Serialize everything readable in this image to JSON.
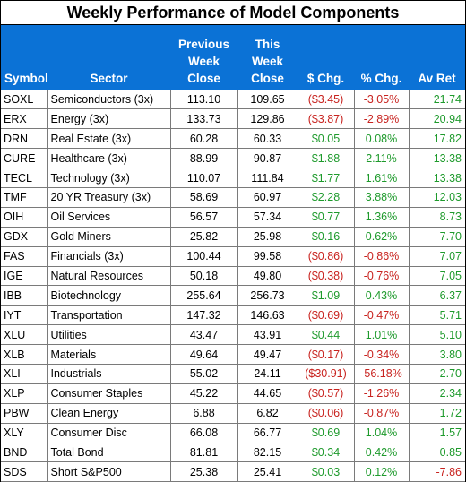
{
  "title": "Weekly Performance of Model Components",
  "headers": {
    "symbol": "Symbol",
    "sector": "Sector",
    "prev_close": [
      "Previous",
      "Week",
      "Close"
    ],
    "this_close": [
      "This",
      "Week",
      "Close"
    ],
    "dollar_chg": "$ Chg.",
    "pct_chg": "% Chg.",
    "av_ret": "Av Ret"
  },
  "colors": {
    "header_bg": "#0b72d6",
    "positive": "#1e9a2c",
    "negative": "#c8231f"
  },
  "rows": [
    {
      "symbol": "SOXL",
      "sector": "Semiconductors (3x)",
      "prev": "113.10",
      "curr": "109.65",
      "dchg": "($3.45)",
      "pchg": "-3.05%",
      "ret": "21.74",
      "chg_sign": "neg",
      "ret_sign": "pos"
    },
    {
      "symbol": "ERX",
      "sector": "Energy (3x)",
      "prev": "133.73",
      "curr": "129.86",
      "dchg": "($3.87)",
      "pchg": "-2.89%",
      "ret": "20.94",
      "chg_sign": "neg",
      "ret_sign": "pos"
    },
    {
      "symbol": "DRN",
      "sector": "Real Estate (3x)",
      "prev": "60.28",
      "curr": "60.33",
      "dchg": "$0.05",
      "pchg": "0.08%",
      "ret": "17.82",
      "chg_sign": "pos",
      "ret_sign": "pos"
    },
    {
      "symbol": "CURE",
      "sector": "Healthcare (3x)",
      "prev": "88.99",
      "curr": "90.87",
      "dchg": "$1.88",
      "pchg": "2.11%",
      "ret": "13.38",
      "chg_sign": "pos",
      "ret_sign": "pos"
    },
    {
      "symbol": "TECL",
      "sector": "Technology (3x)",
      "prev": "110.07",
      "curr": "111.84",
      "dchg": "$1.77",
      "pchg": "1.61%",
      "ret": "13.38",
      "chg_sign": "pos",
      "ret_sign": "pos"
    },
    {
      "symbol": "TMF",
      "sector": "20 YR Treasury (3x)",
      "prev": "58.69",
      "curr": "60.97",
      "dchg": "$2.28",
      "pchg": "3.88%",
      "ret": "12.03",
      "chg_sign": "pos",
      "ret_sign": "pos"
    },
    {
      "symbol": "OIH",
      "sector": "Oil Services",
      "prev": "56.57",
      "curr": "57.34",
      "dchg": "$0.77",
      "pchg": "1.36%",
      "ret": "8.73",
      "chg_sign": "pos",
      "ret_sign": "pos"
    },
    {
      "symbol": "GDX",
      "sector": "Gold Miners",
      "prev": "25.82",
      "curr": "25.98",
      "dchg": "$0.16",
      "pchg": "0.62%",
      "ret": "7.70",
      "chg_sign": "pos",
      "ret_sign": "pos"
    },
    {
      "symbol": "FAS",
      "sector": "Financials (3x)",
      "prev": "100.44",
      "curr": "99.58",
      "dchg": "($0.86)",
      "pchg": "-0.86%",
      "ret": "7.07",
      "chg_sign": "neg",
      "ret_sign": "pos"
    },
    {
      "symbol": "IGE",
      "sector": "Natural Resources",
      "prev": "50.18",
      "curr": "49.80",
      "dchg": "($0.38)",
      "pchg": "-0.76%",
      "ret": "7.05",
      "chg_sign": "neg",
      "ret_sign": "pos"
    },
    {
      "symbol": "IBB",
      "sector": "Biotechnology",
      "prev": "255.64",
      "curr": "256.73",
      "dchg": "$1.09",
      "pchg": "0.43%",
      "ret": "6.37",
      "chg_sign": "pos",
      "ret_sign": "pos"
    },
    {
      "symbol": "IYT",
      "sector": "Transportation",
      "prev": "147.32",
      "curr": "146.63",
      "dchg": "($0.69)",
      "pchg": "-0.47%",
      "ret": "5.71",
      "chg_sign": "neg",
      "ret_sign": "pos"
    },
    {
      "symbol": "XLU",
      "sector": "Utilities",
      "prev": "43.47",
      "curr": "43.91",
      "dchg": "$0.44",
      "pchg": "1.01%",
      "ret": "5.10",
      "chg_sign": "pos",
      "ret_sign": "pos"
    },
    {
      "symbol": "XLB",
      "sector": "Materials",
      "prev": "49.64",
      "curr": "49.47",
      "dchg": "($0.17)",
      "pchg": "-0.34%",
      "ret": "3.80",
      "chg_sign": "neg",
      "ret_sign": "pos"
    },
    {
      "symbol": "XLI",
      "sector": "Industrials",
      "prev": "55.02",
      "curr": "24.11",
      "dchg": "($30.91)",
      "pchg": "-56.18%",
      "ret": "2.70",
      "chg_sign": "neg",
      "ret_sign": "pos"
    },
    {
      "symbol": "XLP",
      "sector": "Consumer Staples",
      "prev": "45.22",
      "curr": "44.65",
      "dchg": "($0.57)",
      "pchg": "-1.26%",
      "ret": "2.34",
      "chg_sign": "neg",
      "ret_sign": "pos"
    },
    {
      "symbol": "PBW",
      "sector": "Clean Energy",
      "prev": "6.88",
      "curr": "6.82",
      "dchg": "($0.06)",
      "pchg": "-0.87%",
      "ret": "1.72",
      "chg_sign": "neg",
      "ret_sign": "pos"
    },
    {
      "symbol": "XLY",
      "sector": "Consumer Disc",
      "prev": "66.08",
      "curr": "66.77",
      "dchg": "$0.69",
      "pchg": "1.04%",
      "ret": "1.57",
      "chg_sign": "pos",
      "ret_sign": "pos"
    },
    {
      "symbol": "BND",
      "sector": "Total Bond",
      "prev": "81.81",
      "curr": "82.15",
      "dchg": "$0.34",
      "pchg": "0.42%",
      "ret": "0.85",
      "chg_sign": "pos",
      "ret_sign": "pos"
    },
    {
      "symbol": "SDS",
      "sector": "Short S&P500",
      "prev": "25.38",
      "curr": "25.41",
      "dchg": "$0.03",
      "pchg": "0.12%",
      "ret": "-7.86",
      "chg_sign": "pos",
      "ret_sign": "neg"
    }
  ]
}
